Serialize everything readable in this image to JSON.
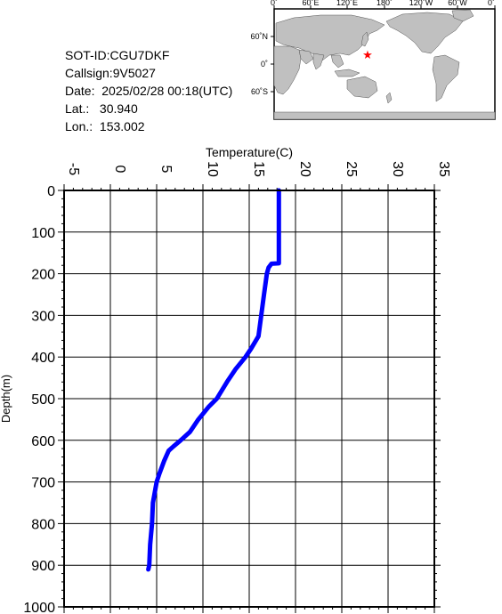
{
  "info": {
    "sot_id": "SOT-ID:CGU7DKF",
    "callsign": "Callsign:9V5027",
    "date": "Date:  2025/02/28 00:18(UTC)",
    "lat": "Lat.:   30.940",
    "lon": "Lon.:  153.002"
  },
  "map": {
    "top_labels": [
      "0˚",
      "60˚E",
      "120˚E",
      "180˚",
      "120˚W",
      "60˚W",
      "0˚"
    ],
    "left_labels": [
      "60˚N",
      "0˚",
      "60˚S"
    ],
    "colors": {
      "ocean": "#ffffff",
      "land": "#c0c0c0",
      "marker": "#ff0000"
    }
  },
  "chart_data": {
    "type": "line",
    "title": "",
    "xlabel": "Temperature(C)",
    "ylabel": "Depth(m)",
    "xlim": [
      -5,
      35
    ],
    "ylim": [
      1000,
      0
    ],
    "x_ticks": [
      "-5",
      "0",
      "5",
      "10",
      "15",
      "20",
      "25",
      "30",
      "35"
    ],
    "y_ticks": [
      "0",
      "100",
      "200",
      "300",
      "400",
      "500",
      "600",
      "700",
      "800",
      "900",
      "1000"
    ],
    "grid": true,
    "line_color": "#0000ff",
    "series": [
      {
        "points": [
          [
            18.2,
            0
          ],
          [
            18.2,
            50
          ],
          [
            18.2,
            100
          ],
          [
            18.2,
            150
          ],
          [
            18.2,
            175
          ],
          [
            17.4,
            176
          ],
          [
            17.1,
            185
          ],
          [
            16.9,
            200
          ],
          [
            16.6,
            250
          ],
          [
            16.3,
            300
          ],
          [
            16.0,
            350
          ],
          [
            15.2,
            380
          ],
          [
            14.6,
            400
          ],
          [
            13.5,
            430
          ],
          [
            12.6,
            460
          ],
          [
            11.5,
            500
          ],
          [
            10.6,
            520
          ],
          [
            9.5,
            550
          ],
          [
            8.6,
            580
          ],
          [
            7.6,
            600
          ],
          [
            6.8,
            615
          ],
          [
            6.3,
            625
          ],
          [
            5.8,
            650
          ],
          [
            5.3,
            680
          ],
          [
            5.0,
            700
          ],
          [
            4.6,
            750
          ],
          [
            4.5,
            800
          ],
          [
            4.3,
            850
          ],
          [
            4.2,
            900
          ],
          [
            4.1,
            910
          ]
        ]
      }
    ]
  }
}
